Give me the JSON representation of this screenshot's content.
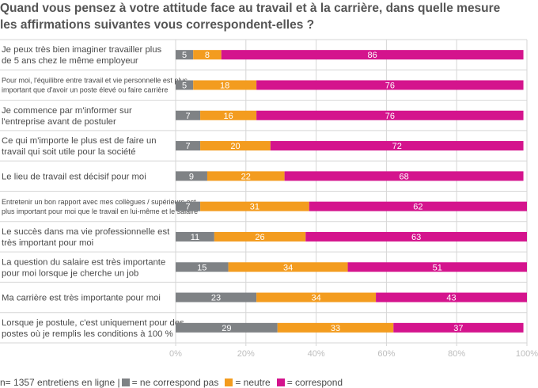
{
  "title_lines": [
    "Quand vous pensez à votre attitude face au travail et à la carrière, dans quelle mesure",
    "les affirmations suivantes vous correspondent-elles ?"
  ],
  "footer": {
    "sample_note": "n= 1357 entretiens en ligne  |",
    "legend": [
      {
        "label": "= ne correspond pas",
        "color": "#7f8285"
      },
      {
        "label": "= neutre",
        "color": "#f39c1f"
      },
      {
        "label": "= correspond",
        "color": "#d4148d"
      }
    ]
  },
  "chart_data": {
    "type": "bar",
    "stacked": true,
    "orientation": "horizontal",
    "xlim": [
      0,
      100
    ],
    "x_tick_labels": [
      "0%",
      "20%",
      "40%",
      "60%",
      "80%",
      "100%"
    ],
    "grid": true,
    "categories": [
      [
        "Je peux très bien imaginer travailler plus",
        "de 5 ans chez le même employeur"
      ],
      [
        "Pour moi, l'équilibre entre travail et vie personnelle est plus",
        "important que d'avoir un poste élevé ou faire carrière"
      ],
      [
        "Je commence par m'informer sur",
        "l'entreprise avant de postuler"
      ],
      [
        "Ce qui m'importe le plus est de faire un",
        "travail qui soit utile pour la société"
      ],
      [
        "Le lieu de travail est décisif pour moi"
      ],
      [
        "Entretenir un bon rapport avec mes collègues / supérieurs est",
        "plus important pour moi que le travail en lui-même et le salaire"
      ],
      [
        "Le succès dans ma vie professionnelle est",
        "très important pour moi"
      ],
      [
        "La question du salaire est très importante",
        "pour moi lorsque je cherche un job"
      ],
      [
        "Ma carrière est très importante pour moi"
      ],
      [
        "Lorsque je postule, c'est uniquement pour des",
        "postes où je remplis les conditions à 100 %"
      ]
    ],
    "series": [
      {
        "name": "ne correspond pas",
        "color": "#7f8285",
        "values": [
          5,
          5,
          7,
          7,
          9,
          7,
          11,
          15,
          23,
          29
        ]
      },
      {
        "name": "neutre",
        "color": "#f39c1f",
        "values": [
          8,
          18,
          16,
          20,
          22,
          31,
          26,
          34,
          34,
          33
        ]
      },
      {
        "name": "correspond",
        "color": "#d4148d",
        "values": [
          86,
          76,
          76,
          72,
          68,
          62,
          63,
          51,
          43,
          37
        ]
      }
    ]
  }
}
